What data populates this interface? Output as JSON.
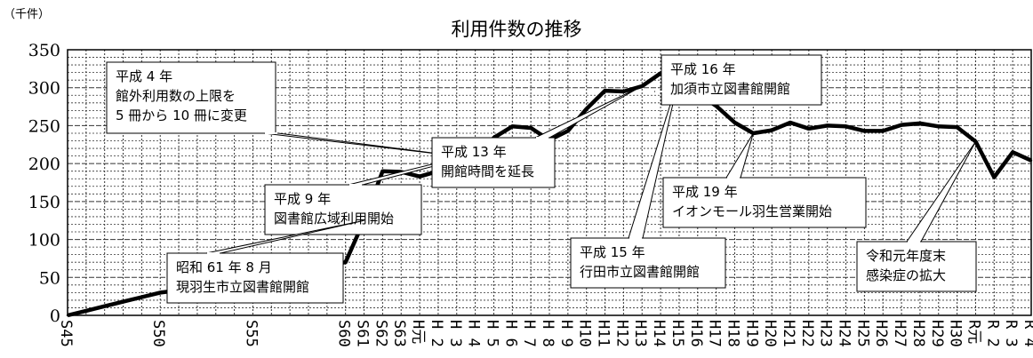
{
  "chart_data": {
    "type": "line",
    "title": "利用件数の推移",
    "unit_label": "（千件）",
    "ylim": [
      0,
      350
    ],
    "yticks": [
      0,
      50,
      100,
      150,
      200,
      250,
      300,
      350
    ],
    "grid": true,
    "categories": [
      "S45",
      "",
      "",
      "",
      "",
      "S50",
      "",
      "",
      "",
      "",
      "S55",
      "",
      "",
      "",
      "",
      "S60",
      "S61",
      "S62",
      "S63",
      "H元",
      "H 2",
      "H 3",
      "H 4",
      "H 5",
      "H 6",
      "H 7",
      "H 8",
      "H 9",
      "H10",
      "H11",
      "H12",
      "H13",
      "H14",
      "H15",
      "H16",
      "H17",
      "H18",
      "H19",
      "H20",
      "H21",
      "H22",
      "H23",
      "H24",
      "H25",
      "H26",
      "H27",
      "H28",
      "H29",
      "H30",
      "R元",
      "R 2",
      "R 3",
      "R 4"
    ],
    "series": [
      {
        "values": [
          0,
          6,
          12,
          18,
          24,
          30,
          33,
          37,
          40,
          44,
          48,
          53,
          58,
          63,
          66,
          70,
          125,
          190,
          189,
          183,
          190,
          191,
          207,
          234,
          249,
          247,
          231,
          243,
          272,
          296,
          295,
          302,
          319,
          315,
          292,
          276,
          254,
          240,
          244,
          254,
          246,
          250,
          249,
          243,
          243,
          251,
          253,
          249,
          248,
          229,
          182,
          215,
          204
        ]
      }
    ],
    "annotations": [
      {
        "lines": [
          "平成 4 年",
          "館外利用数の上限を",
          "5 冊から 10 冊に変更"
        ],
        "target": "H 4"
      },
      {
        "lines": [
          "平成 9 年",
          "図書館広域利用開始"
        ],
        "target": "H 9"
      },
      {
        "lines": [
          "昭和 61 年 8 月",
          "現羽生市立図書館開館"
        ],
        "target": "S61"
      },
      {
        "lines": [
          "平成 13 年",
          "開館時間を延長"
        ],
        "target": "H13"
      },
      {
        "lines": [
          "平成 15 年",
          "行田市立図書館開館"
        ],
        "target": "H15"
      },
      {
        "lines": [
          "平成 16 年",
          "加須市立図書館開館"
        ],
        "target": "H16"
      },
      {
        "lines": [
          "平成 19 年",
          "イオンモール羽生営業開始"
        ],
        "target": "H19"
      },
      {
        "lines": [
          "令和元年度末",
          "感染症の拡大"
        ],
        "target": "R元"
      }
    ]
  }
}
